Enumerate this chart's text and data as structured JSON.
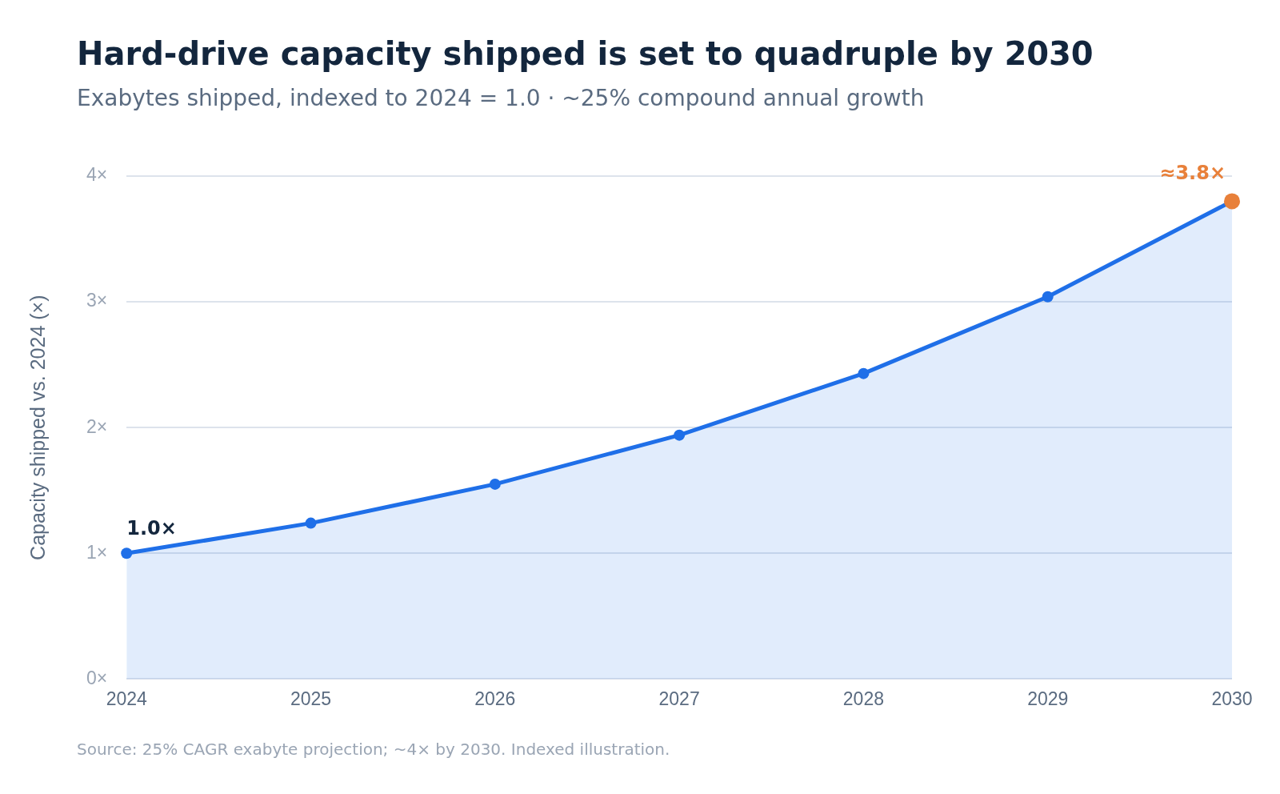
{
  "chart_data": {
    "type": "area",
    "title": "Hard-drive capacity shipped is set to quadruple by 2030",
    "subtitle": "Exabytes shipped, indexed to 2024 = 1.0 · ~25% compound annual growth",
    "ylabel": "Capacity shipped vs. 2024 (×)",
    "categories": [
      "2024",
      "2025",
      "2026",
      "2027",
      "2028",
      "2029",
      "2030"
    ],
    "series": [
      {
        "color": "#1f6fe8",
        "colors": [
          "#1f6fe8",
          "#1f6fe8",
          "#1f6fe8",
          "#1f6fe8",
          "#1f6fe8",
          "#1f6fe8",
          "#e8803a"
        ],
        "values": [
          1.0,
          1.24,
          1.55,
          1.94,
          2.43,
          3.04,
          3.8
        ]
      }
    ],
    "ylim": [
      0,
      4
    ],
    "yticks": [
      {
        "value": 0,
        "label": "0×"
      },
      {
        "value": 1,
        "label": "1×"
      },
      {
        "value": 2,
        "label": "2×"
      },
      {
        "value": 3,
        "label": "3×"
      },
      {
        "value": 4,
        "label": "4×"
      }
    ],
    "grid": "y",
    "legend": false,
    "marker": "circle",
    "line_style": "solid",
    "annotations": [
      {
        "text": "1.0×",
        "x": "2024",
        "y": 1.0
      },
      {
        "text": "≈3.8×",
        "x": "2030",
        "y": 3.8
      },
      "Source: 25% CAGR exabyte projection; ~4× by 2030. Indexed illustration."
    ]
  }
}
